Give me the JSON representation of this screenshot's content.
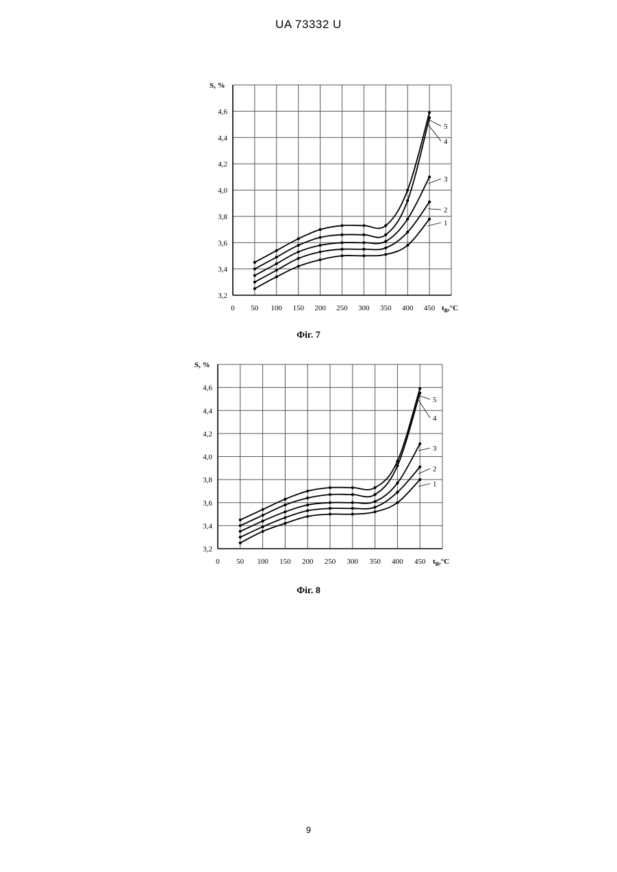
{
  "header": "UA   73332   U",
  "page_number": "9",
  "chart_data": [
    {
      "type": "line",
      "caption": "Фіг. 7",
      "ylabel": "S, %",
      "xlabel_main": "t",
      "xlabel_sub": "B",
      "xlabel_unit": ",°C",
      "x_ticks": [
        "0",
        "50",
        "100",
        "150",
        "200",
        "250",
        "300",
        "350",
        "400",
        "450"
      ],
      "y_ticks": [
        "3,2",
        "3,4",
        "3,6",
        "3,8",
        "4,0",
        "4,2",
        "4,4",
        "4,6"
      ],
      "xlim": [
        0,
        500
      ],
      "ylim": [
        3.2,
        4.8
      ],
      "x": [
        50,
        100,
        150,
        200,
        250,
        300,
        350,
        400,
        450
      ],
      "series": [
        {
          "name": "1",
          "values": [
            3.25,
            3.34,
            3.42,
            3.47,
            3.5,
            3.5,
            3.51,
            3.58,
            3.78
          ]
        },
        {
          "name": "2",
          "values": [
            3.3,
            3.39,
            3.48,
            3.53,
            3.55,
            3.55,
            3.56,
            3.68,
            3.91
          ]
        },
        {
          "name": "3",
          "values": [
            3.35,
            3.44,
            3.53,
            3.58,
            3.6,
            3.6,
            3.61,
            3.78,
            4.1
          ]
        },
        {
          "name": "4",
          "values": [
            3.4,
            3.49,
            3.58,
            3.64,
            3.66,
            3.66,
            3.66,
            3.92,
            4.55
          ]
        },
        {
          "name": "5",
          "values": [
            3.45,
            3.54,
            3.63,
            3.7,
            3.73,
            3.73,
            3.73,
            4.0,
            4.59
          ]
        }
      ]
    },
    {
      "type": "line",
      "caption": "Фіг. 8",
      "ylabel": "S, %",
      "xlabel_main": "t",
      "xlabel_sub": "B",
      "xlabel_unit": ",°C",
      "x_ticks": [
        "0",
        "50",
        "100",
        "150",
        "200",
        "250",
        "300",
        "350",
        "400",
        "450"
      ],
      "y_ticks": [
        "3,2",
        "3,4",
        "3,6",
        "3,8",
        "4,0",
        "4,2",
        "4,4",
        "4,6"
      ],
      "xlim": [
        0,
        500
      ],
      "ylim": [
        3.2,
        4.8
      ],
      "x": [
        50,
        100,
        150,
        200,
        250,
        300,
        350,
        400,
        450
      ],
      "series": [
        {
          "name": "1",
          "values": [
            3.25,
            3.35,
            3.42,
            3.48,
            3.5,
            3.5,
            3.52,
            3.6,
            3.8
          ]
        },
        {
          "name": "2",
          "values": [
            3.3,
            3.39,
            3.47,
            3.53,
            3.55,
            3.55,
            3.56,
            3.69,
            3.91
          ]
        },
        {
          "name": "3",
          "values": [
            3.35,
            3.44,
            3.52,
            3.58,
            3.6,
            3.6,
            3.61,
            3.77,
            4.11
          ]
        },
        {
          "name": "4",
          "values": [
            3.4,
            3.49,
            3.58,
            3.64,
            3.67,
            3.67,
            3.67,
            3.92,
            4.55
          ]
        },
        {
          "name": "5",
          "values": [
            3.45,
            3.54,
            3.63,
            3.7,
            3.73,
            3.73,
            3.73,
            3.96,
            4.59
          ]
        }
      ]
    }
  ]
}
